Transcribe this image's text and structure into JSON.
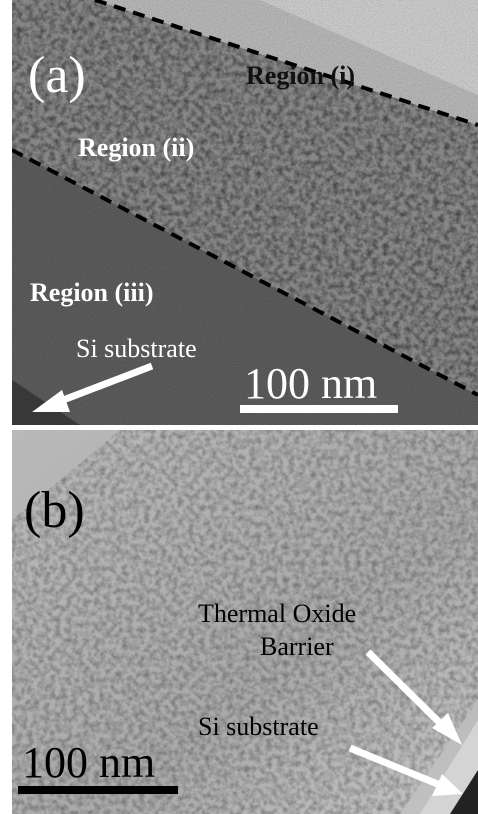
{
  "panels": [
    {
      "label": "(a)",
      "regions": [
        "Region (i)",
        "Region (ii)",
        "Region (iii)"
      ],
      "arrow_label": "Si substrate",
      "scale_bar": "100 nm"
    },
    {
      "label": "(b)",
      "arrow_labels": [
        [
          "Thermal Oxide",
          "Barrier"
        ],
        "Si substrate"
      ],
      "scale_bar": "100 nm"
    }
  ]
}
